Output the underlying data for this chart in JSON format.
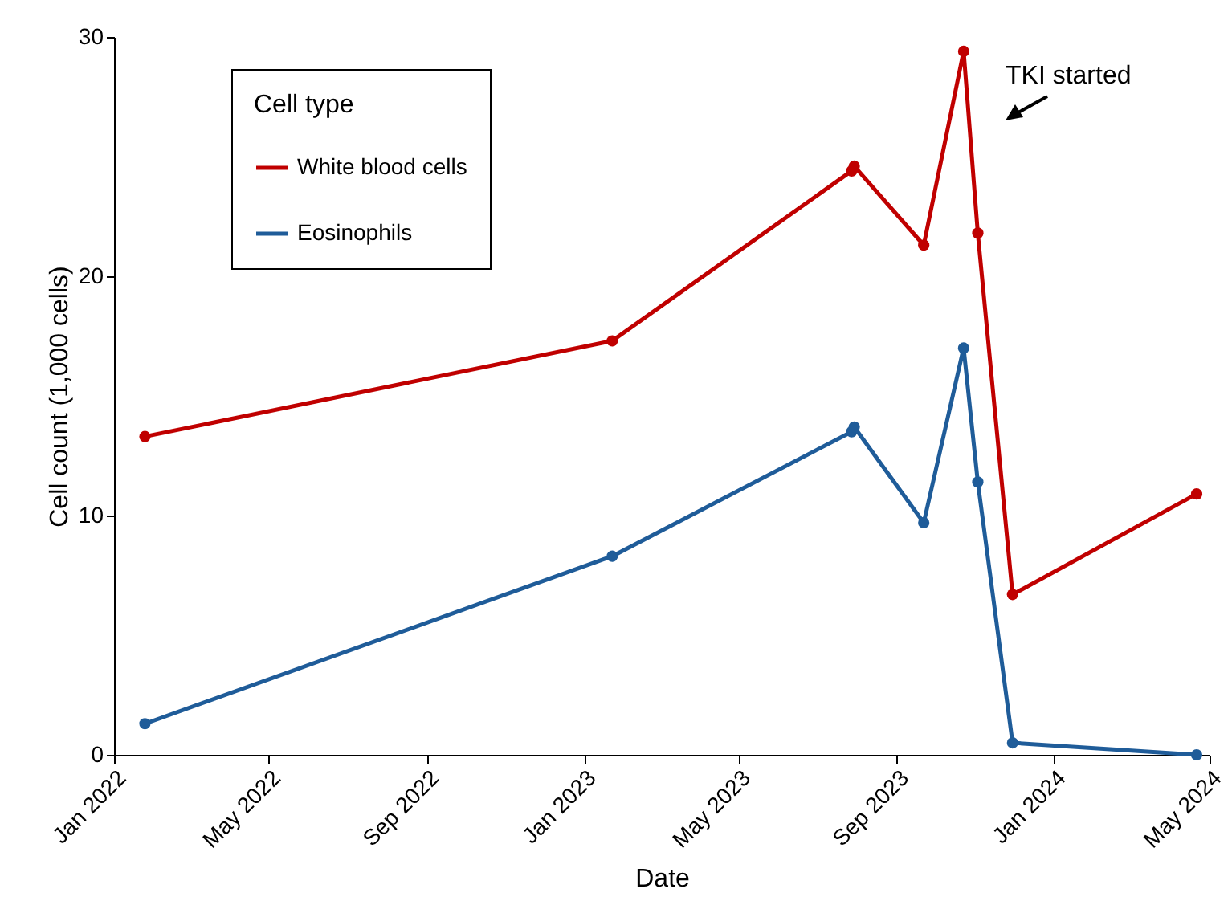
{
  "chart_data": {
    "type": "line",
    "xlabel": "Date",
    "ylabel": "Cell count (1,000 cells)",
    "legend_title": "Cell type",
    "legend": "top left",
    "marker": "circle",
    "line_style": "solid",
    "grid": false,
    "x": [
      "2022-01-25",
      "2023-01-23",
      "2023-07-28",
      "2023-07-30",
      "2023-09-22",
      "2023-10-23",
      "2023-11-03",
      "2023-11-30",
      "2024-04-21"
    ],
    "series": [
      {
        "name": "White blood cells",
        "color": "#c00000",
        "values": [
          13.3,
          17.3,
          24.4,
          24.6,
          21.3,
          29.4,
          21.8,
          6.7,
          10.9
        ]
      },
      {
        "name": "Eosinophils",
        "color": "#1f5c99",
        "values": [
          1.3,
          8.3,
          13.5,
          13.7,
          9.7,
          17.0,
          11.4,
          0.5,
          0
        ]
      }
    ],
    "xlim": [
      "2022-01",
      "2024-05"
    ],
    "xticks": [
      {
        "value": "2022-01",
        "label": "Jan 2022"
      },
      {
        "value": "2022-05",
        "label": "May 2022"
      },
      {
        "value": "2022-09",
        "label": "Sep 2022"
      },
      {
        "value": "2023-01",
        "label": "Jan 2023"
      },
      {
        "value": "2023-05",
        "label": "May 2023"
      },
      {
        "value": "2023-09",
        "label": "Sep 2023"
      },
      {
        "value": "2024-01",
        "label": "Jan 2024"
      },
      {
        "value": "2024-05",
        "label": "May 2024"
      }
    ],
    "ylim": [
      0,
      30
    ],
    "yticks": [
      0,
      10,
      20,
      30
    ],
    "annotations": [
      "TKI started"
    ]
  }
}
